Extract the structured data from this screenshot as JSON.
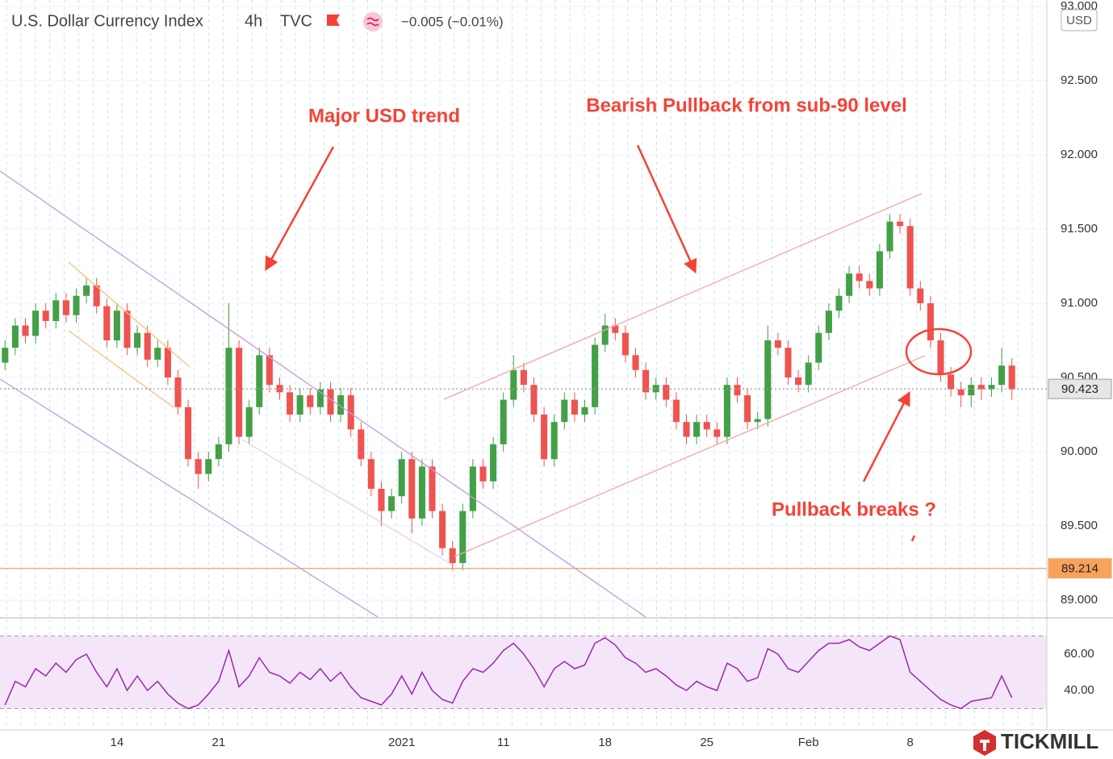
{
  "chart_data": [
    {
      "type": "candlestick",
      "title": "U.S. Dollar Currency Index",
      "interval": "4h",
      "source": "TVC",
      "change": "−0.005 (−0.01%)",
      "currency": "USD",
      "categories": [
        null,
        null,
        null,
        null,
        null,
        null,
        null,
        null,
        null,
        null,
        null,
        "14",
        null,
        null,
        null,
        null,
        null,
        null,
        null,
        null,
        null,
        "21",
        null,
        null,
        null,
        null,
        null,
        null,
        null,
        null,
        null,
        null,
        null,
        null,
        null,
        null,
        null,
        null,
        null,
        "2021",
        null,
        null,
        null,
        null,
        null,
        null,
        null,
        null,
        null,
        "11",
        null,
        null,
        null,
        null,
        null,
        null,
        null,
        null,
        null,
        "18",
        null,
        null,
        null,
        null,
        null,
        null,
        null,
        null,
        null,
        "25",
        null,
        null,
        null,
        null,
        null,
        null,
        null,
        null,
        null,
        "Feb",
        null,
        null,
        null,
        null,
        null,
        null,
        null,
        null,
        null,
        "8",
        null,
        null,
        null,
        null,
        null,
        null,
        null,
        null,
        null,
        null
      ],
      "open": [
        90.6,
        90.7,
        90.85,
        90.78,
        90.95,
        90.88,
        91.02,
        90.92,
        91.05,
        91.12,
        90.98,
        90.75,
        90.95,
        90.7,
        90.8,
        90.62,
        90.7,
        90.5,
        90.3,
        89.95,
        89.85,
        89.95,
        90.05,
        90.7,
        90.1,
        90.3,
        90.65,
        90.45,
        90.4,
        90.25,
        90.38,
        90.3,
        90.42,
        90.25,
        90.38,
        90.15,
        89.95,
        89.75,
        89.6,
        89.7,
        89.95,
        89.55,
        89.9,
        89.6,
        89.35,
        89.25,
        89.6,
        89.9,
        89.8,
        90.05,
        90.35,
        90.55,
        90.45,
        90.25,
        89.95,
        90.2,
        90.35,
        90.25,
        90.3,
        90.72,
        90.85,
        90.8,
        90.65,
        90.55,
        90.4,
        90.45,
        90.35,
        90.2,
        90.1,
        90.2,
        90.15,
        90.1,
        90.45,
        90.38,
        90.2,
        90.22,
        90.75,
        90.7,
        90.5,
        90.45,
        90.6,
        90.8,
        90.95,
        91.05,
        91.2,
        91.15,
        91.1,
        91.35,
        91.55,
        91.52,
        91.1,
        91.0,
        90.75,
        90.52,
        90.42,
        90.38,
        90.45,
        90.42,
        90.45,
        90.58
      ],
      "high": [
        90.75,
        90.9,
        90.9,
        91.0,
        91.0,
        91.07,
        91.07,
        91.1,
        91.17,
        91.17,
        91.03,
        91.0,
        91.0,
        90.85,
        90.85,
        90.75,
        90.75,
        90.55,
        90.35,
        90.0,
        90.0,
        90.1,
        91.0,
        90.75,
        90.35,
        90.7,
        90.7,
        90.5,
        90.45,
        90.43,
        90.43,
        90.47,
        90.47,
        90.43,
        90.43,
        90.2,
        90.0,
        89.8,
        89.75,
        90.0,
        90.0,
        89.95,
        89.95,
        89.65,
        89.4,
        89.65,
        89.95,
        89.95,
        90.1,
        90.4,
        90.65,
        90.6,
        90.5,
        90.3,
        90.25,
        90.4,
        90.4,
        90.35,
        90.77,
        90.93,
        90.9,
        90.85,
        90.7,
        90.6,
        90.5,
        90.5,
        90.4,
        90.25,
        90.25,
        90.25,
        90.2,
        90.5,
        90.5,
        90.43,
        90.27,
        90.85,
        90.8,
        90.75,
        90.55,
        90.65,
        90.85,
        91.0,
        91.1,
        91.25,
        91.25,
        91.2,
        91.4,
        91.6,
        91.6,
        91.57,
        91.15,
        91.05,
        90.8,
        90.57,
        90.47,
        90.5,
        90.5,
        90.5,
        90.7,
        90.63
      ],
      "low": [
        90.55,
        90.65,
        90.73,
        90.73,
        90.83,
        90.83,
        90.87,
        90.87,
        91.0,
        90.93,
        90.7,
        90.7,
        90.65,
        90.65,
        90.57,
        90.57,
        90.45,
        90.25,
        89.9,
        89.75,
        89.8,
        89.9,
        90.0,
        90.05,
        90.05,
        90.25,
        90.4,
        90.35,
        90.2,
        90.2,
        90.25,
        90.25,
        90.2,
        90.2,
        90.1,
        89.9,
        89.7,
        89.5,
        89.55,
        89.65,
        89.45,
        89.5,
        89.55,
        89.3,
        89.2,
        89.2,
        89.55,
        89.75,
        89.75,
        90.0,
        90.3,
        90.4,
        90.2,
        89.9,
        89.9,
        90.15,
        90.2,
        90.2,
        90.25,
        90.67,
        90.75,
        90.6,
        90.5,
        90.35,
        90.35,
        90.3,
        90.15,
        90.05,
        90.05,
        90.1,
        90.05,
        90.05,
        90.33,
        90.15,
        90.15,
        90.17,
        90.65,
        90.45,
        90.4,
        90.4,
        90.55,
        90.75,
        90.9,
        91.0,
        91.1,
        91.05,
        91.05,
        91.3,
        91.47,
        91.05,
        90.95,
        90.7,
        90.47,
        90.37,
        90.3,
        90.3,
        90.35,
        90.37,
        90.4,
        90.35
      ],
      "close": [
        90.7,
        90.85,
        90.78,
        90.95,
        90.88,
        91.02,
        90.92,
        91.05,
        91.12,
        90.98,
        90.75,
        90.95,
        90.7,
        90.8,
        90.62,
        90.7,
        90.5,
        90.3,
        89.95,
        89.85,
        89.95,
        90.05,
        90.7,
        90.1,
        90.3,
        90.65,
        90.45,
        90.4,
        90.25,
        90.38,
        90.3,
        90.42,
        90.25,
        90.38,
        90.15,
        89.95,
        89.75,
        89.6,
        89.7,
        89.95,
        89.55,
        89.9,
        89.6,
        89.35,
        89.25,
        89.6,
        89.9,
        89.8,
        90.05,
        90.35,
        90.55,
        90.45,
        90.25,
        89.95,
        90.2,
        90.35,
        90.25,
        90.3,
        90.72,
        90.85,
        90.8,
        90.65,
        90.55,
        90.4,
        90.45,
        90.35,
        90.2,
        90.1,
        90.2,
        90.15,
        90.1,
        90.45,
        90.38,
        90.2,
        90.22,
        90.75,
        90.7,
        90.5,
        90.45,
        90.6,
        90.8,
        90.95,
        91.05,
        91.2,
        91.15,
        91.1,
        91.35,
        91.55,
        91.52,
        91.1,
        91.0,
        90.75,
        90.52,
        90.42,
        90.38,
        90.45,
        90.42,
        90.45,
        90.58,
        90.42
      ],
      "up_color": "#43a047",
      "down_color": "#ef5350",
      "ylim": [
        88.886,
        93.043
      ],
      "yticks": [
        {
          "value": 89,
          "label": "89.000"
        },
        {
          "value": 89.5,
          "label": "89.500"
        },
        {
          "value": 90,
          "label": "90.000"
        },
        {
          "value": 90.5,
          "label": "90.500"
        },
        {
          "value": 91,
          "label": "91.000"
        },
        {
          "value": 91.5,
          "label": "91.500"
        },
        {
          "value": 92,
          "label": "92.000"
        },
        {
          "value": 92.5,
          "label": "92.500"
        },
        {
          "value": 93,
          "label": "93.000"
        }
      ],
      "grid": true,
      "price_lines": [
        {
          "value": 90.423,
          "color": "#9e9e9e"
        },
        {
          "value": 89.214,
          "color": "#f7a35c"
        }
      ],
      "annotations": [
        "Major USD trend",
        "Bearish Pullback from sub-90 level",
        "Pullback breaks ?"
      ]
    },
    {
      "type": "line",
      "values": [
        32,
        45,
        42,
        52,
        48,
        55,
        50,
        57,
        60,
        50,
        42,
        52,
        40,
        48,
        40,
        45,
        38,
        33,
        30,
        32,
        38,
        45,
        62,
        42,
        48,
        58,
        50,
        48,
        44,
        50,
        46,
        52,
        45,
        50,
        42,
        36,
        34,
        32,
        38,
        48,
        38,
        50,
        40,
        35,
        33,
        45,
        52,
        50,
        55,
        62,
        66,
        60,
        52,
        42,
        52,
        56,
        52,
        54,
        66,
        69,
        65,
        58,
        55,
        50,
        52,
        48,
        43,
        40,
        45,
        42,
        40,
        55,
        52,
        45,
        47,
        63,
        60,
        52,
        50,
        56,
        62,
        66,
        66,
        68,
        64,
        62,
        66,
        70,
        68,
        50,
        45,
        40,
        35,
        32,
        30,
        34,
        35,
        36,
        48,
        36
      ],
      "color": "#9c27b0",
      "band": [
        30,
        70
      ],
      "ylim": [
        18.2,
        79.1
      ],
      "yticks": [
        {
          "value": 40,
          "label": "40.00"
        },
        {
          "value": 60,
          "label": "60.00"
        }
      ]
    }
  ],
  "brand": "TICKMILL"
}
